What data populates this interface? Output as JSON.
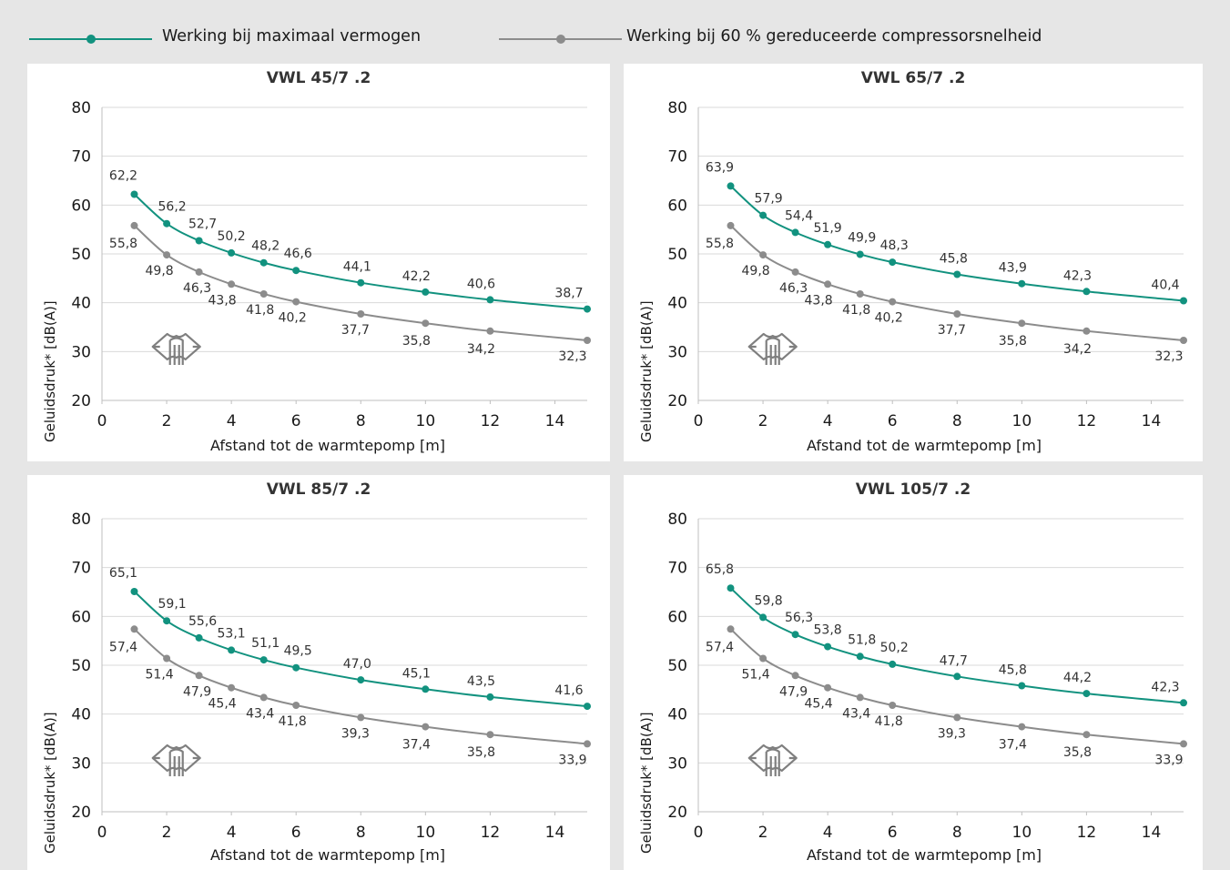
{
  "legend": {
    "max_label": "Werking bij maximaal vermogen",
    "reduced_label": "Werking bij 60 % gereduceerde compressorsnelheid"
  },
  "colors": {
    "max": "#12927f",
    "reduced": "#8c8c8c",
    "grid": "#d9d9d9",
    "panel": "#ffffff",
    "background": "#e6e6e6"
  },
  "chart_data": [
    {
      "type": "line",
      "title": "VWL 45/7 .2",
      "xlabel": "Afstand tot de warmtepomp [m]",
      "ylabel": "Geluidsdruk* [dB(A)]",
      "xlim": [
        0,
        15
      ],
      "ylim": [
        20,
        80
      ],
      "xticks": [
        "0",
        "2",
        "4",
        "6",
        "8",
        "10",
        "12",
        "14"
      ],
      "yticks": [
        "20",
        "30",
        "40",
        "50",
        "60",
        "70",
        "80"
      ],
      "grid": "horizontal",
      "icon": "ear-icon",
      "x": [
        1,
        2,
        3,
        4,
        5,
        6,
        8,
        10,
        12,
        15
      ],
      "series": [
        {
          "name": "Werking bij maximaal vermogen",
          "values": [
            62.2,
            56.2,
            52.7,
            50.2,
            48.2,
            46.6,
            44.1,
            42.2,
            40.6,
            38.7
          ],
          "labels": [
            "62,2",
            "56,2",
            "52,7",
            "50,2",
            "48,2",
            "46,6",
            "44,1",
            "42,2",
            "40,6",
            "38,7"
          ]
        },
        {
          "name": "Werking bij 60 % gereduceerde compressorsnelheid",
          "values": [
            55.8,
            49.8,
            46.3,
            43.8,
            41.8,
            40.2,
            37.7,
            35.8,
            34.2,
            32.3
          ],
          "labels": [
            "55,8",
            "49,8",
            "46,3",
            "43,8",
            "41,8",
            "40,2",
            "37,7",
            "35,8",
            "34,2",
            "32,3"
          ]
        }
      ]
    },
    {
      "type": "line",
      "title": "VWL 65/7 .2",
      "xlabel": "Afstand tot de warmtepomp [m]",
      "ylabel": "Geluidsdruk* [dB(A)]",
      "xlim": [
        0,
        15
      ],
      "ylim": [
        20,
        80
      ],
      "xticks": [
        "0",
        "2",
        "4",
        "6",
        "8",
        "10",
        "12",
        "14"
      ],
      "yticks": [
        "20",
        "30",
        "40",
        "50",
        "60",
        "70",
        "80"
      ],
      "grid": "horizontal",
      "icon": "ear-icon",
      "x": [
        1,
        2,
        3,
        4,
        5,
        6,
        8,
        10,
        12,
        15
      ],
      "series": [
        {
          "name": "Werking bij maximaal vermogen",
          "values": [
            63.9,
            57.9,
            54.4,
            51.9,
            49.9,
            48.3,
            45.8,
            43.9,
            42.3,
            40.4
          ],
          "labels": [
            "63,9",
            "57,9",
            "54,4",
            "51,9",
            "49,9",
            "48,3",
            "45,8",
            "43,9",
            "42,3",
            "40,4"
          ]
        },
        {
          "name": "Werking bij 60 % gereduceerde compressorsnelheid",
          "values": [
            55.8,
            49.8,
            46.3,
            43.8,
            41.8,
            40.2,
            37.7,
            35.8,
            34.2,
            32.3
          ],
          "labels": [
            "55,8",
            "49,8",
            "46,3",
            "43,8",
            "41,8",
            "40,2",
            "37,7",
            "35,8",
            "34,2",
            "32,3"
          ]
        }
      ]
    },
    {
      "type": "line",
      "title": "VWL 85/7 .2",
      "xlabel": "Afstand tot de warmtepomp [m]",
      "ylabel": "Geluidsdruk* [dB(A)]",
      "xlim": [
        0,
        15
      ],
      "ylim": [
        20,
        80
      ],
      "xticks": [
        "0",
        "2",
        "4",
        "6",
        "8",
        "10",
        "12",
        "14"
      ],
      "yticks": [
        "20",
        "30",
        "40",
        "50",
        "60",
        "70",
        "80"
      ],
      "grid": "horizontal",
      "icon": "ear-icon",
      "x": [
        1,
        2,
        3,
        4,
        5,
        6,
        8,
        10,
        12,
        15
      ],
      "series": [
        {
          "name": "Werking bij maximaal vermogen",
          "values": [
            65.1,
            59.1,
            55.6,
            53.1,
            51.1,
            49.5,
            47.0,
            45.1,
            43.5,
            41.6
          ],
          "labels": [
            "65,1",
            "59,1",
            "55,6",
            "53,1",
            "51,1",
            "49,5",
            "47,0",
            "45,1",
            "43,5",
            "41,6"
          ]
        },
        {
          "name": "Werking bij 60 % gereduceerde compressorsnelheid",
          "values": [
            57.4,
            51.4,
            47.9,
            45.4,
            43.4,
            41.8,
            39.3,
            37.4,
            35.8,
            33.9
          ],
          "labels": [
            "57,4",
            "51,4",
            "47,9",
            "45,4",
            "43,4",
            "41,8",
            "39,3",
            "37,4",
            "35,8",
            "33,9"
          ]
        }
      ]
    },
    {
      "type": "line",
      "title": "VWL 105/7 .2",
      "xlabel": "Afstand tot de warmtepomp [m]",
      "ylabel": "Geluidsdruk* [dB(A)]",
      "xlim": [
        0,
        15
      ],
      "ylim": [
        20,
        80
      ],
      "xticks": [
        "0",
        "2",
        "4",
        "6",
        "8",
        "10",
        "12",
        "14"
      ],
      "yticks": [
        "20",
        "30",
        "40",
        "50",
        "60",
        "70",
        "80"
      ],
      "grid": "horizontal",
      "icon": "ear-icon",
      "x": [
        1,
        2,
        3,
        4,
        5,
        6,
        8,
        10,
        12,
        15
      ],
      "series": [
        {
          "name": "Werking bij maximaal vermogen",
          "values": [
            65.8,
            59.8,
            56.3,
            53.8,
            51.8,
            50.2,
            47.7,
            45.8,
            44.2,
            42.3
          ],
          "labels": [
            "65,8",
            "59,8",
            "56,3",
            "53,8",
            "51,8",
            "50,2",
            "47,7",
            "45,8",
            "44,2",
            "42,3"
          ]
        },
        {
          "name": "Werking bij 60 % gereduceerde compressorsnelheid",
          "values": [
            57.4,
            51.4,
            47.9,
            45.4,
            43.4,
            41.8,
            39.3,
            37.4,
            35.8,
            33.9
          ],
          "labels": [
            "57,4",
            "51,4",
            "47,9",
            "45,4",
            "43,4",
            "41,8",
            "39,3",
            "37,4",
            "35,8",
            "33,9"
          ]
        }
      ]
    }
  ]
}
